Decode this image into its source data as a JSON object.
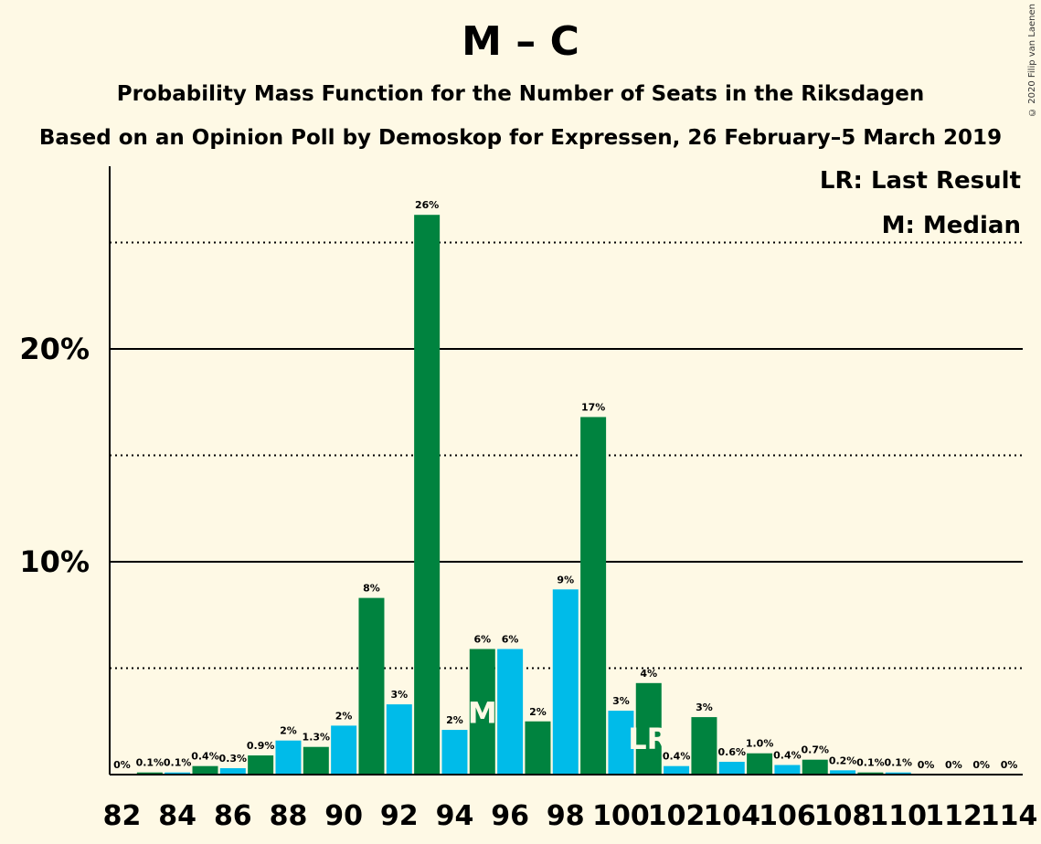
{
  "title": "M – C",
  "subtitle": "Probability Mass Function for the Number of Seats in the Riksdagen",
  "subtitle2": "Based on an Opinion Poll by Demoskop for Expressen, 26 February–5 March 2019",
  "copyright": "© 2020 Filip van Laenen",
  "legend": {
    "last_result": "LR: Last Result",
    "median": "M: Median"
  },
  "colors": {
    "background": "#fef9e5",
    "green": "#00833f",
    "blue": "#00bbe9"
  },
  "chart_data": {
    "type": "bar",
    "title": "M – C",
    "xlabel": "",
    "ylabel": "",
    "ylim": [
      0,
      28.5
    ],
    "y_ticks": [
      {
        "value": 10,
        "label": "10%"
      },
      {
        "value": 20,
        "label": "20%"
      }
    ],
    "dotted_gridlines": [
      5,
      15,
      25
    ],
    "x_tick_labels": [
      "82",
      "84",
      "86",
      "88",
      "90",
      "92",
      "94",
      "96",
      "98",
      "100",
      "102",
      "104",
      "106",
      "108",
      "110",
      "112",
      "114"
    ],
    "seats": [
      82,
      83,
      84,
      85,
      86,
      87,
      88,
      89,
      90,
      91,
      92,
      93,
      94,
      95,
      96,
      97,
      98,
      99,
      100,
      101,
      102,
      103,
      104,
      105,
      106,
      107,
      108,
      109,
      110,
      111,
      112,
      113,
      114
    ],
    "values": [
      0,
      0.1,
      0.1,
      0.4,
      0.3,
      0.9,
      1.6,
      1.3,
      2.3,
      8.3,
      3.3,
      26.3,
      2.1,
      5.9,
      5.9,
      2.5,
      8.7,
      16.8,
      3.0,
      4.3,
      0.4,
      2.7,
      0.6,
      1.0,
      0.45,
      0.7,
      0.2,
      0.1,
      0.1,
      0,
      0,
      0,
      0
    ],
    "labels": [
      "0%",
      "0.1%",
      "0.1%",
      "0.4%",
      "0.3%",
      "0.9%",
      "2%",
      "1.3%",
      "2%",
      "8%",
      "3%",
      "26%",
      "2%",
      "6%",
      "6%",
      "2%",
      "9%",
      "17%",
      "3%",
      "4%",
      "0.4%",
      "3%",
      "0.6%",
      "1.0%",
      "0.4%",
      "0.7%",
      "0.2%",
      "0.1%",
      "0.1%",
      "0%",
      "0%",
      "0%",
      "0%"
    ],
    "median_seat": 95,
    "median_label": "M",
    "last_result_seat": 101,
    "last_result_label": "LR"
  }
}
